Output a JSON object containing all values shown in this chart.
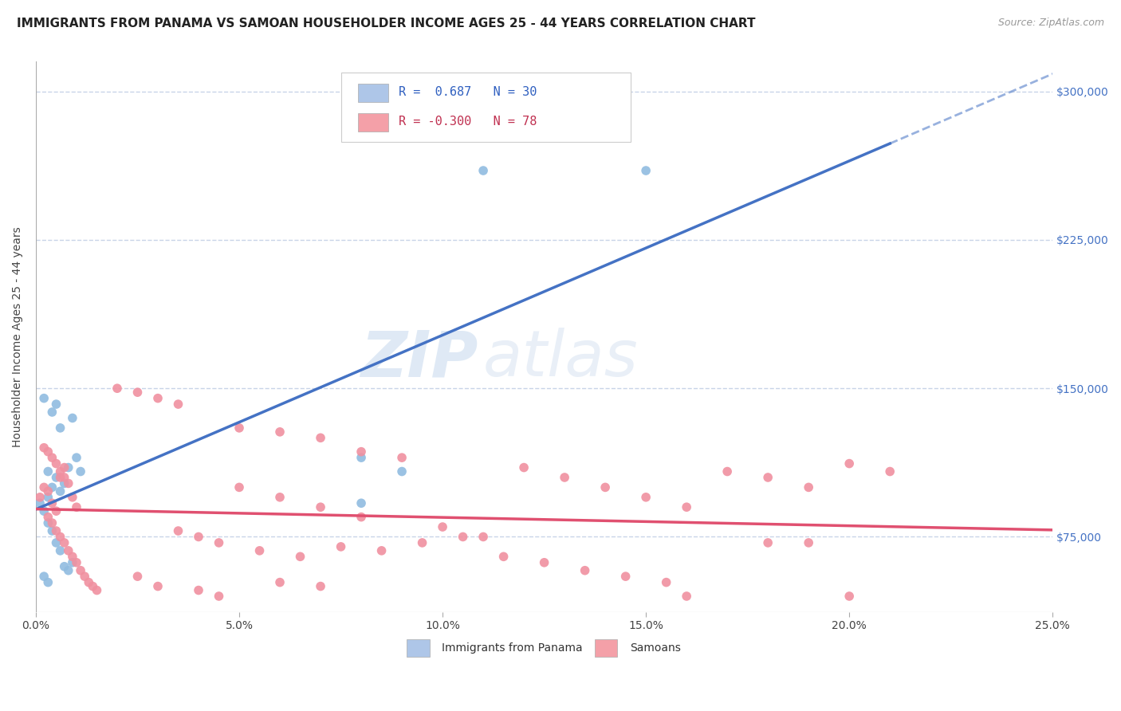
{
  "title": "IMMIGRANTS FROM PANAMA VS SAMOAN HOUSEHOLDER INCOME AGES 25 - 44 YEARS CORRELATION CHART",
  "source": "Source: ZipAtlas.com",
  "ylabel_label": "Householder Income Ages 25 - 44 years",
  "ytick_labels": [
    "$75,000",
    "$150,000",
    "$225,000",
    "$300,000"
  ],
  "ytick_values": [
    75000,
    150000,
    225000,
    300000
  ],
  "xtick_values": [
    0.0,
    0.05,
    0.1,
    0.15,
    0.2,
    0.25
  ],
  "xtick_labels": [
    "0.0%",
    "5.0%",
    "10.0%",
    "15.0%",
    "20.0%",
    "25.0%"
  ],
  "xmin": 0.0,
  "xmax": 0.25,
  "ymin": 37000,
  "ymax": 315000,
  "watermark_zip": "ZIP",
  "watermark_atlas": "atlas",
  "legend_blue_text": "R =  0.687   N = 30",
  "legend_pink_text": "R = -0.300   N = 78",
  "bottom_legend_blue": "Immigrants from Panama",
  "bottom_legend_pink": "Samoans",
  "panama_points": [
    [
      0.001,
      92000
    ],
    [
      0.002,
      88000
    ],
    [
      0.003,
      95000
    ],
    [
      0.004,
      100000
    ],
    [
      0.005,
      105000
    ],
    [
      0.003,
      108000
    ],
    [
      0.006,
      98000
    ],
    [
      0.007,
      102000
    ],
    [
      0.008,
      110000
    ],
    [
      0.002,
      145000
    ],
    [
      0.004,
      138000
    ],
    [
      0.005,
      142000
    ],
    [
      0.006,
      130000
    ],
    [
      0.009,
      135000
    ],
    [
      0.003,
      82000
    ],
    [
      0.004,
      78000
    ],
    [
      0.005,
      72000
    ],
    [
      0.006,
      68000
    ],
    [
      0.007,
      60000
    ],
    [
      0.008,
      58000
    ],
    [
      0.009,
      62000
    ],
    [
      0.002,
      55000
    ],
    [
      0.003,
      52000
    ],
    [
      0.01,
      115000
    ],
    [
      0.011,
      108000
    ],
    [
      0.08,
      115000
    ],
    [
      0.09,
      108000
    ],
    [
      0.11,
      260000
    ],
    [
      0.15,
      260000
    ],
    [
      0.08,
      92000
    ]
  ],
  "samoan_points": [
    [
      0.001,
      95000
    ],
    [
      0.002,
      100000
    ],
    [
      0.003,
      98000
    ],
    [
      0.004,
      92000
    ],
    [
      0.005,
      88000
    ],
    [
      0.006,
      105000
    ],
    [
      0.007,
      110000
    ],
    [
      0.008,
      102000
    ],
    [
      0.009,
      95000
    ],
    [
      0.01,
      90000
    ],
    [
      0.002,
      120000
    ],
    [
      0.003,
      118000
    ],
    [
      0.004,
      115000
    ],
    [
      0.005,
      112000
    ],
    [
      0.006,
      108000
    ],
    [
      0.007,
      105000
    ],
    [
      0.003,
      85000
    ],
    [
      0.004,
      82000
    ],
    [
      0.005,
      78000
    ],
    [
      0.006,
      75000
    ],
    [
      0.007,
      72000
    ],
    [
      0.008,
      68000
    ],
    [
      0.009,
      65000
    ],
    [
      0.01,
      62000
    ],
    [
      0.011,
      58000
    ],
    [
      0.012,
      55000
    ],
    [
      0.013,
      52000
    ],
    [
      0.014,
      50000
    ],
    [
      0.015,
      48000
    ],
    [
      0.05,
      100000
    ],
    [
      0.06,
      95000
    ],
    [
      0.07,
      90000
    ],
    [
      0.08,
      85000
    ],
    [
      0.09,
      115000
    ],
    [
      0.1,
      80000
    ],
    [
      0.11,
      75000
    ],
    [
      0.12,
      110000
    ],
    [
      0.13,
      105000
    ],
    [
      0.14,
      100000
    ],
    [
      0.15,
      95000
    ],
    [
      0.16,
      90000
    ],
    [
      0.17,
      108000
    ],
    [
      0.18,
      105000
    ],
    [
      0.19,
      100000
    ],
    [
      0.2,
      112000
    ],
    [
      0.21,
      108000
    ],
    [
      0.035,
      78000
    ],
    [
      0.04,
      75000
    ],
    [
      0.045,
      72000
    ],
    [
      0.055,
      68000
    ],
    [
      0.065,
      65000
    ],
    [
      0.075,
      70000
    ],
    [
      0.085,
      68000
    ],
    [
      0.095,
      72000
    ],
    [
      0.105,
      75000
    ],
    [
      0.115,
      65000
    ],
    [
      0.125,
      62000
    ],
    [
      0.135,
      58000
    ],
    [
      0.145,
      55000
    ],
    [
      0.155,
      52000
    ],
    [
      0.02,
      150000
    ],
    [
      0.025,
      148000
    ],
    [
      0.03,
      145000
    ],
    [
      0.035,
      142000
    ],
    [
      0.05,
      130000
    ],
    [
      0.06,
      128000
    ],
    [
      0.07,
      125000
    ],
    [
      0.08,
      118000
    ],
    [
      0.025,
      55000
    ],
    [
      0.03,
      50000
    ],
    [
      0.04,
      48000
    ],
    [
      0.045,
      45000
    ],
    [
      0.06,
      52000
    ],
    [
      0.07,
      50000
    ],
    [
      0.16,
      45000
    ],
    [
      0.2,
      45000
    ],
    [
      0.18,
      72000
    ],
    [
      0.19,
      72000
    ]
  ],
  "blue_line_color": "#4472c4",
  "pink_line_color": "#e05070",
  "blue_marker_color": "#90bce0",
  "pink_marker_color": "#f090a0",
  "grid_color": "#c8d4e8",
  "background_color": "#ffffff",
  "title_fontsize": 11,
  "axis_label_fontsize": 10,
  "tick_fontsize": 10,
  "legend_fontsize": 11,
  "blue_face": "#aec6e8",
  "pink_face": "#f4a0a8",
  "blue_text_color": "#3060c0",
  "pink_text_color": "#c03050",
  "right_tick_color": "#4472c4"
}
